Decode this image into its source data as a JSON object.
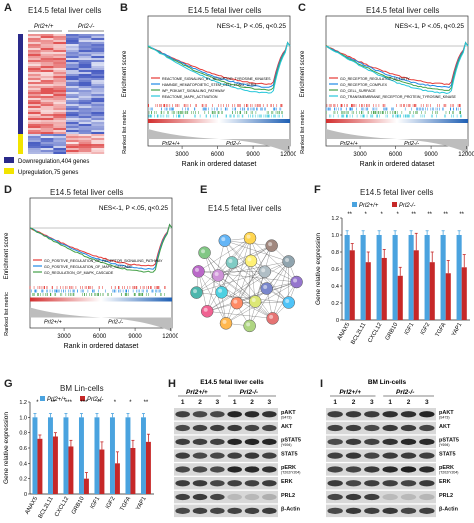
{
  "panels": {
    "A": {
      "label": "A",
      "title": "E14.5 fetal liver cells",
      "group_wt": "Prl2+/+",
      "group_ko": "Prl2-/-",
      "legend": [
        {
          "label": "Downregulation,404 genes",
          "color": "#2a2a8a"
        },
        {
          "label": "Upregulation,75 genes",
          "color": "#f2e400"
        }
      ]
    },
    "B": {
      "label": "B",
      "title": "E14.5 fetal liver cells",
      "stats": "NES<-1, P <.05, q<0.25",
      "ylabel_top": "Enrichment score",
      "ylabel_bottom": "Ranked list metric",
      "xlabel": "Rank in ordered dataset",
      "xticks": [
        "3000",
        "6000",
        "9000",
        "12000"
      ],
      "group_wt": "Prl2+/+",
      "group_ko": "Prl2-/-",
      "legend": [
        {
          "label": "REACTOME_SIGNALING_BY_RECEPTOR_TYROSINE_KINASES",
          "color": "#e53935"
        },
        {
          "label": "HAMNDE_HEMATOPOIETIC_STEM_CELL_LONG_TERM",
          "color": "#1e88e5"
        },
        {
          "label": "WP_PI3KAKT_SIGNALING_PATHWAY",
          "color": "#43a047"
        },
        {
          "label": "REACTOME_MAPK_ACTIVATION",
          "color": "#26c6da"
        }
      ]
    },
    "C": {
      "label": "C",
      "title": "E14.5 fetal liver cells",
      "stats": "NES<-1, P <.05, q<0.25",
      "ylabel_top": "Enrichment score",
      "ylabel_bottom": "Ranked list metric",
      "xlabel": "Rank in ordered dataset",
      "xticks": [
        "3000",
        "6000",
        "9000",
        "12000"
      ],
      "group_wt": "Prl2+/+",
      "group_ko": "Prl2-/-",
      "legend": [
        {
          "label": "GO_RECEPTOR_REGULATOR_ACTIVITY",
          "color": "#e53935"
        },
        {
          "label": "GO_RECEPTOR_COMPLEX",
          "color": "#1e88e5"
        },
        {
          "label": "GO_CELL_SURFACE",
          "color": "#43a047"
        },
        {
          "label": "GO_TRANSMEMBRANE_RECEPTOR_PROTEIN_TYROSINE_KINASE",
          "color": "#26c6da"
        }
      ]
    },
    "D": {
      "label": "D",
      "title": "E14.5 fetal liver cells",
      "stats": "NES<-1, P <.05, q<0.25",
      "ylabel_top": "Enrichment score",
      "ylabel_bottom": "Ranked list metric",
      "xlabel": "Rank in ordered dataset",
      "xticks": [
        "3000",
        "6000",
        "9000",
        "12000"
      ],
      "group_wt": "Prl2+/+",
      "group_ko": "Prl2-/-",
      "legend": [
        {
          "label": "GO_POSITIVE_REGULATION_OF_RECEPTOR_SIGNALING_PATHWAY",
          "color": "#e53935"
        },
        {
          "label": "GO_POSITIVE_REGULATION_OF_MAPK_CASCADE",
          "color": "#1e88e5"
        },
        {
          "label": "GO_REGULATION_OF_MAPK_CASCADE",
          "color": "#43a047"
        }
      ]
    },
    "E": {
      "label": "E",
      "title": "E14.5 fetal liver cells"
    },
    "F": {
      "label": "F",
      "title": "E14.5 fetal liver cells",
      "ylabel": "Gene relative expression",
      "legend_wt": "Prl2+/+",
      "legend_ko": "Prl2-/-"
    },
    "G": {
      "label": "G",
      "title": "BM Lin-cells",
      "ylabel": "Gene relative expression",
      "legend_wt": "Prl2+/+",
      "legend_ko": "Prl2-/-"
    },
    "H": {
      "label": "H",
      "title": "E14.5 fetal liver cells",
      "group_wt": "Prl2+/+",
      "group_ko": "Prl2-/-",
      "lanes": [
        "1",
        "2",
        "3",
        "1",
        "2",
        "3"
      ],
      "blots": [
        "pAKT",
        "AKT",
        "pSTAT5",
        "STAT5",
        "pERK",
        "ERK",
        "PRL2",
        "β-Actin"
      ],
      "blot_subs": [
        "(S473)",
        "",
        "(Y694)",
        "",
        "(T202/Y204)",
        "",
        "",
        ""
      ]
    },
    "I": {
      "label": "I",
      "title": "BM Lin-cells",
      "group_wt": "Prl2+/+",
      "group_ko": "Prl2-/-",
      "lanes": [
        "1",
        "2",
        "3",
        "1",
        "2",
        "3"
      ],
      "blots": [
        "pAKT",
        "AKT",
        "pSTAT5",
        "STAT5",
        "pERK",
        "ERK",
        "PRL2",
        "β-Actin"
      ],
      "blot_subs": [
        "(S473)",
        "",
        "(Y694)",
        "",
        "(T202/Y204)",
        "",
        "",
        ""
      ]
    }
  },
  "chart_data": [
    {
      "type": "bar",
      "panel": "F",
      "title": "E14.5 fetal liver cells",
      "ylabel": "Gene relative expression",
      "categories": [
        "ANAX5",
        "BCL2L11",
        "CXCL12",
        "GRB10",
        "IGF1",
        "IGF2",
        "TGFA",
        "YAP1"
      ],
      "series": [
        {
          "name": "Prl2+/+",
          "color": "#4aa3df",
          "values": [
            1.0,
            1.0,
            1.0,
            1.0,
            1.0,
            1.0,
            1.0,
            1.0
          ],
          "errors": [
            0.05,
            0.05,
            0.05,
            0.05,
            0.05,
            0.05,
            0.05,
            0.05
          ]
        },
        {
          "name": "Prl2-/-",
          "color": "#c62828",
          "values": [
            0.82,
            0.68,
            0.73,
            0.52,
            0.82,
            0.68,
            0.55,
            0.62
          ],
          "errors": [
            0.08,
            0.12,
            0.1,
            0.1,
            0.2,
            0.12,
            0.15,
            0.15
          ]
        }
      ],
      "significance": [
        "**",
        "*",
        "*",
        "*",
        "**",
        "**",
        "**",
        "**"
      ],
      "ylim": [
        0,
        1.2
      ],
      "yticks": [
        "0",
        "0.2",
        "0.4",
        "0.6",
        "0.8",
        "1.0",
        "1.2"
      ]
    },
    {
      "type": "bar",
      "panel": "G",
      "title": "BM Lin-cells",
      "ylabel": "Gene relative expression",
      "categories": [
        "ANAX5",
        "BCL2L11",
        "CXCL12",
        "GRB10",
        "IGF1",
        "IGF2",
        "TGFA",
        "YAP1"
      ],
      "series": [
        {
          "name": "Prl2+/+",
          "color": "#4aa3df",
          "values": [
            1.0,
            1.0,
            1.0,
            1.0,
            1.0,
            1.0,
            1.0,
            1.0
          ],
          "errors": [
            0.05,
            0.05,
            0.05,
            0.05,
            0.05,
            0.05,
            0.05,
            0.05
          ]
        },
        {
          "name": "Prl2-/-",
          "color": "#c62828",
          "values": [
            0.72,
            0.75,
            0.62,
            0.2,
            0.58,
            0.4,
            0.6,
            0.68
          ],
          "errors": [
            0.05,
            0.05,
            0.08,
            0.08,
            0.1,
            0.15,
            0.1,
            0.1
          ]
        }
      ],
      "significance": [
        "*",
        "**",
        "***",
        "***",
        "**",
        "*",
        "*",
        "**"
      ],
      "ylim": [
        0,
        1.2
      ],
      "yticks": [
        "0",
        "0.2",
        "0.4",
        "0.6",
        "0.8",
        "1.0",
        "1.2"
      ]
    }
  ]
}
